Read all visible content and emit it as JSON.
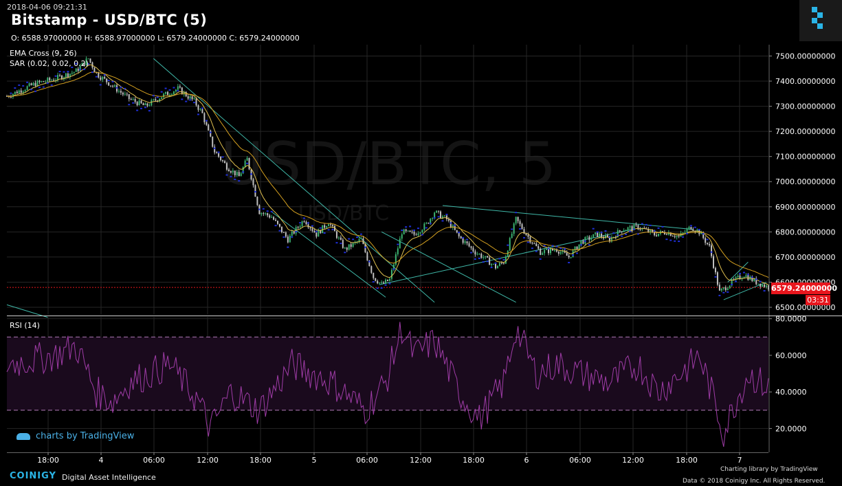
{
  "header": {
    "timestamp": "2018-04-06 09:21:31",
    "title": "Bitstamp - USD/BTC (5)",
    "ohlc": "O: 6588.97000000 H: 6588.97000000 L: 6579.24000000 C: 6579.24000000",
    "indicator_1": "EMA Cross (9, 26)",
    "indicator_2": "SAR (0.02, 0.02, 0.2)"
  },
  "watermark": {
    "large": "USD/BTC, 5",
    "small": "USD/BTC"
  },
  "current_price": {
    "value": "6579.24000000",
    "countdown": "03:31"
  },
  "rsi_panel": {
    "label": "RSI (14)"
  },
  "colors": {
    "background": "#000000",
    "candle_up": "#3cb371",
    "candle_down": "#c0c0c0",
    "sar_dots": "#1f2fd8",
    "ema_line": "#d4a020",
    "trend_lines": "#3fb8a8",
    "rsi_line": "#a03ca8",
    "current_price_line": "#e8161d"
  },
  "footer": {
    "tv_credit": "charts by TradingView",
    "brand": "COINIGY",
    "brand_sub": "Digital Asset Intelligence",
    "charting_lib": "Charting library by   TradingView",
    "copyright": "Data © 2018   Coinigy Inc. All Rights Reserved."
  },
  "chart_data": [
    {
      "type": "candlestick",
      "title": "Bitstamp - USD/BTC (5)",
      "x_ticks": [
        "18:00",
        "4",
        "06:00",
        "12:00",
        "18:00",
        "5",
        "06:00",
        "12:00",
        "18:00",
        "6",
        "06:00",
        "12:00",
        "18:00",
        "7"
      ],
      "y_ticks": [
        6500,
        6600,
        6700,
        6800,
        6900,
        7000,
        7100,
        7200,
        7300,
        7400,
        7500
      ],
      "y_tick_labels": [
        "6500.00000000",
        "6600.00000000",
        "6700.00000000",
        "6800.00000000",
        "6900.00000000",
        "7000.00000000",
        "7100.00000000",
        "7200.00000000",
        "7300.00000000",
        "7400.00000000",
        "7500.00000000"
      ],
      "ylim": [
        6470,
        7545
      ],
      "price_path": [
        [
          0,
          7340
        ],
        [
          14,
          7390
        ],
        [
          24,
          7410
        ],
        [
          34,
          7440
        ],
        [
          40,
          7490
        ],
        [
          44,
          7430
        ],
        [
          52,
          7380
        ],
        [
          60,
          7330
        ],
        [
          68,
          7300
        ],
        [
          76,
          7340
        ],
        [
          84,
          7370
        ],
        [
          92,
          7320
        ],
        [
          96,
          7270
        ],
        [
          102,
          7120
        ],
        [
          108,
          7060
        ],
        [
          114,
          7020
        ],
        [
          118,
          7090
        ],
        [
          124,
          6880
        ],
        [
          130,
          6860
        ],
        [
          138,
          6770
        ],
        [
          146,
          6850
        ],
        [
          152,
          6790
        ],
        [
          158,
          6840
        ],
        [
          166,
          6730
        ],
        [
          174,
          6770
        ],
        [
          180,
          6620
        ],
        [
          184,
          6590
        ],
        [
          188,
          6610
        ],
        [
          194,
          6800
        ],
        [
          200,
          6790
        ],
        [
          206,
          6830
        ],
        [
          210,
          6880
        ],
        [
          216,
          6850
        ],
        [
          222,
          6780
        ],
        [
          230,
          6720
        ],
        [
          234,
          6700
        ],
        [
          240,
          6660
        ],
        [
          244,
          6680
        ],
        [
          250,
          6850
        ],
        [
          256,
          6780
        ],
        [
          262,
          6720
        ],
        [
          270,
          6730
        ],
        [
          276,
          6700
        ],
        [
          282,
          6760
        ],
        [
          290,
          6790
        ],
        [
          296,
          6770
        ],
        [
          302,
          6810
        ],
        [
          310,
          6820
        ],
        [
          318,
          6790
        ],
        [
          324,
          6800
        ],
        [
          330,
          6780
        ],
        [
          336,
          6820
        ],
        [
          340,
          6800
        ],
        [
          345,
          6740
        ],
        [
          350,
          6560
        ],
        [
          356,
          6600
        ],
        [
          362,
          6630
        ],
        [
          368,
          6600
        ],
        [
          374,
          6580
        ]
      ],
      "trend_lines": [
        {
          "from": [
            72,
            7490
          ],
          "to": [
            210,
            6520
          ]
        },
        {
          "from": [
            130,
            6880
          ],
          "to": [
            186,
            6540
          ]
        },
        {
          "from": [
            183,
            6590
          ],
          "to": [
            307,
            6810
          ]
        },
        {
          "from": [
            214,
            6905
          ],
          "to": [
            337,
            6810
          ]
        },
        {
          "from": [
            184,
            6800
          ],
          "to": [
            250,
            6520
          ]
        },
        {
          "from": [
            352,
            6530
          ],
          "to": [
            373,
            6600
          ]
        },
        {
          "from": [
            354,
            6600
          ],
          "to": [
            364,
            6680
          ]
        },
        {
          "from": [
            0,
            6510
          ],
          "to": [
            20,
            6460
          ]
        }
      ]
    },
    {
      "type": "line",
      "title": "RSI (14)",
      "y_ticks": [
        20,
        40,
        60,
        80
      ],
      "y_tick_labels": [
        "20.0000",
        "40.0000",
        "60.0000",
        "80.0000"
      ],
      "ylim": [
        7,
        81
      ],
      "bands": [
        30,
        70
      ],
      "approx_rsi": [
        [
          0,
          55
        ],
        [
          24,
          60
        ],
        [
          34,
          65
        ],
        [
          44,
          40
        ],
        [
          52,
          35
        ],
        [
          60,
          45
        ],
        [
          80,
          55
        ],
        [
          94,
          35
        ],
        [
          100,
          20
        ],
        [
          110,
          40
        ],
        [
          124,
          30
        ],
        [
          140,
          55
        ],
        [
          160,
          45
        ],
        [
          176,
          30
        ],
        [
          186,
          45
        ],
        [
          194,
          75
        ],
        [
          200,
          60
        ],
        [
          210,
          68
        ],
        [
          222,
          40
        ],
        [
          232,
          25
        ],
        [
          244,
          45
        ],
        [
          250,
          75
        ],
        [
          260,
          50
        ],
        [
          270,
          55
        ],
        [
          282,
          50
        ],
        [
          296,
          45
        ],
        [
          310,
          55
        ],
        [
          320,
          40
        ],
        [
          336,
          55
        ],
        [
          340,
          60
        ],
        [
          346,
          40
        ],
        [
          352,
          18
        ],
        [
          358,
          35
        ],
        [
          364,
          50
        ],
        [
          374,
          42
        ]
      ]
    }
  ]
}
